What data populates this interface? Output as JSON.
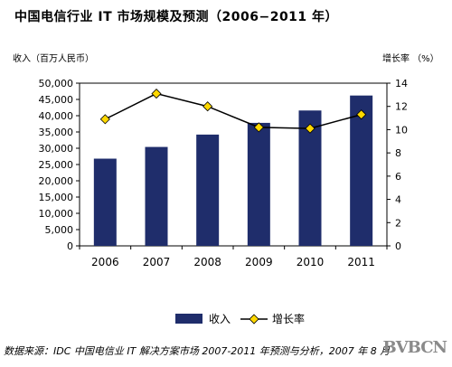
{
  "chart_data": {
    "type": "bar",
    "title": "中国电信行业 IT 市场规模及预测（2006−2011 年）",
    "left_axis_label": "收入（百万人民币）",
    "right_axis_label": "增长率 （%）",
    "categories": [
      "2006",
      "2007",
      "2008",
      "2009",
      "2010",
      "2011"
    ],
    "series": [
      {
        "name": "收入",
        "type": "bar",
        "axis": "left",
        "color": "#1f2d6b",
        "values": [
          26800,
          30400,
          34200,
          37800,
          41600,
          46200
        ]
      },
      {
        "name": "增长率",
        "type": "line",
        "axis": "right",
        "color": "#000000",
        "marker_color": "#ffd800",
        "values": [
          10.9,
          13.1,
          12.0,
          10.2,
          10.1,
          11.3
        ]
      }
    ],
    "left_axis": {
      "min": 0,
      "max": 50000,
      "step": 5000,
      "tick_labels": [
        "0",
        "5,000",
        "10,000",
        "15,000",
        "20,000",
        "25,000",
        "30,000",
        "35,000",
        "40,000",
        "45,000",
        "50,000"
      ]
    },
    "right_axis": {
      "min": 0,
      "max": 14,
      "step": 2,
      "tick_labels": [
        "0",
        "2",
        "4",
        "6",
        "8",
        "10",
        "12",
        "14"
      ]
    },
    "grid": false,
    "legend_position": "bottom"
  },
  "source_text": "数据来源：IDC 中国电信业 IT 解决方案市场 2007-2011 年预测与分析，2007 年 8 月",
  "watermark_text": "BVBCN"
}
